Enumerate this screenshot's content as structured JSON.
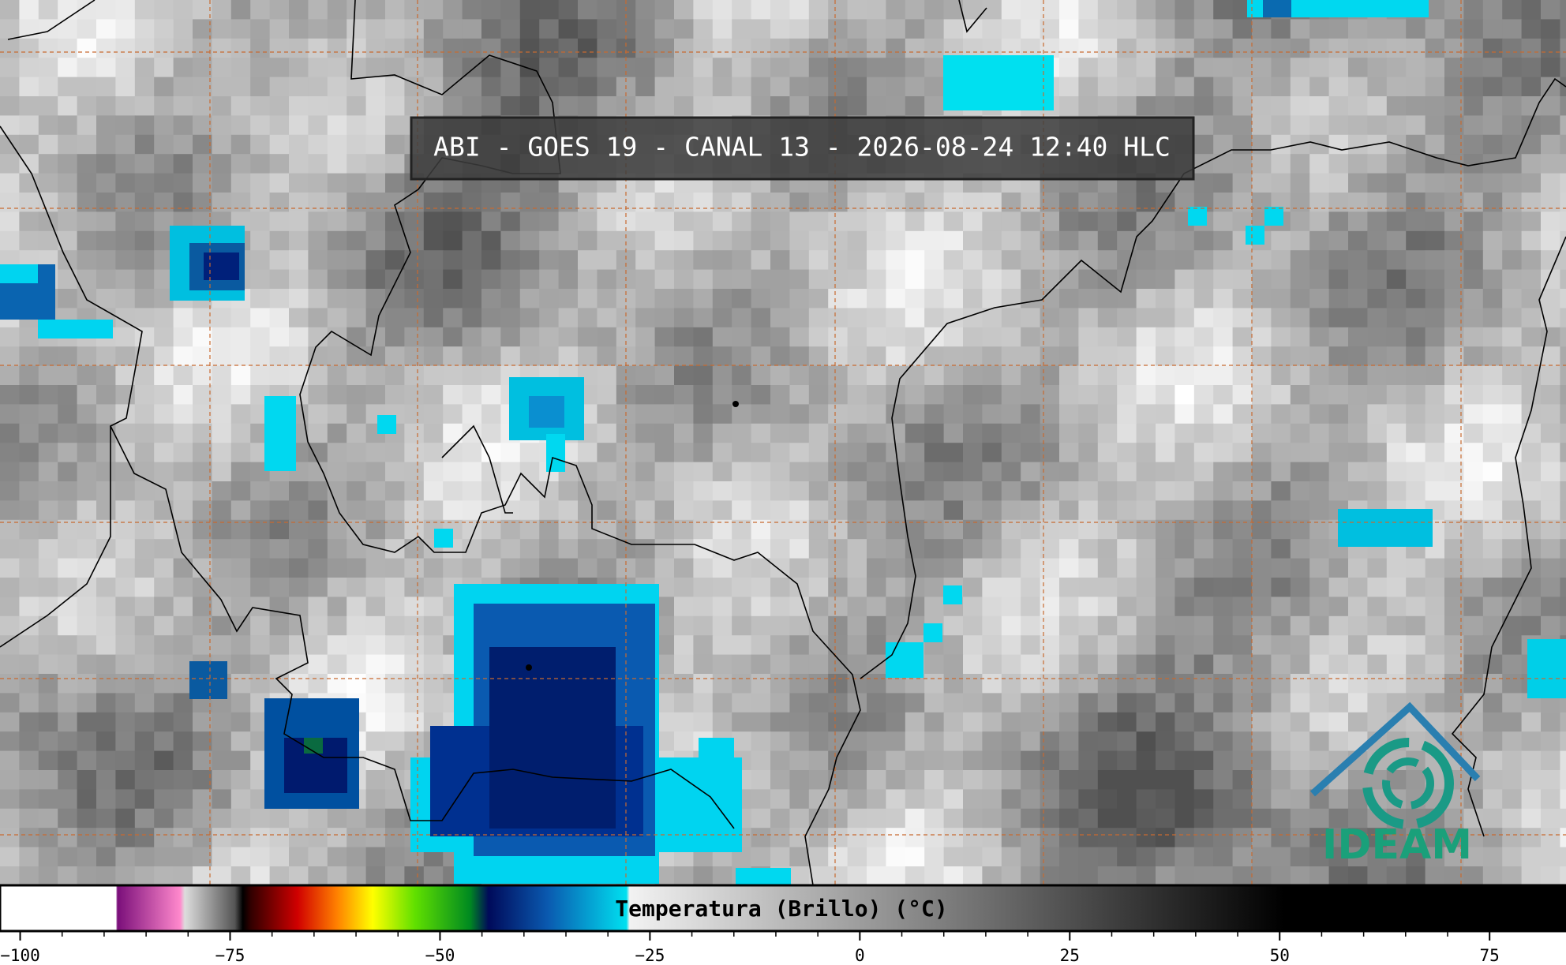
{
  "header": {
    "title": "ABI - GOES 19 - CANAL 13 - 2026-08-24 12:40 HLC"
  },
  "colorbar": {
    "label": "Temperatura (Brillo) (°C)",
    "range": [
      -102.4,
      84.1
    ],
    "ticks": [
      {
        "value": -100,
        "label": "−100"
      },
      {
        "value": -75,
        "label": "−75"
      },
      {
        "value": -50,
        "label": "−50"
      },
      {
        "value": -25,
        "label": "−25"
      },
      0,
      25,
      50,
      75
    ]
  },
  "logo": {
    "text": "IDEAM"
  }
}
